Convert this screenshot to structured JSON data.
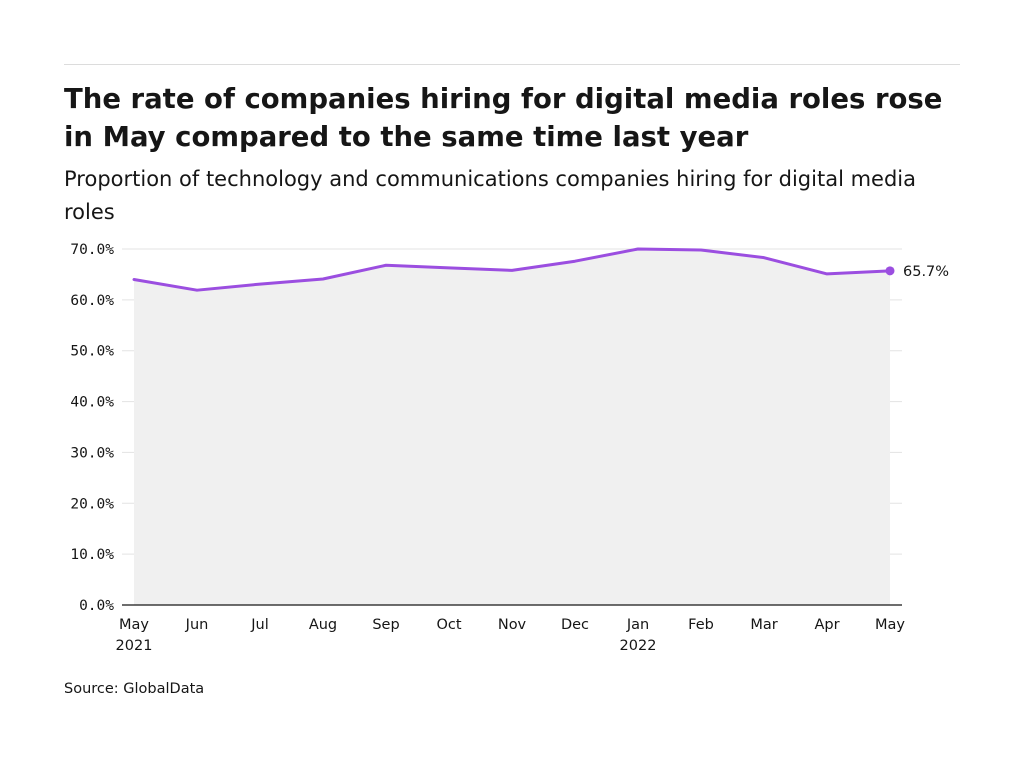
{
  "title": "The rate of companies hiring for digital media roles rose in May compared to the same time last year",
  "subtitle": "Proportion of technology and communications companies hiring for digital media roles",
  "source": "Source: GlobalData",
  "chart_data": {
    "type": "line",
    "title": "The rate of companies hiring for digital media roles rose in May compared to the same time last year",
    "subtitle": "Proportion of technology and communications companies hiring for digital media roles",
    "categories": [
      "May 2021",
      "Jun 2021",
      "Jul 2021",
      "Aug 2021",
      "Sep 2021",
      "Oct 2021",
      "Nov 2021",
      "Dec 2021",
      "Jan 2022",
      "Feb 2022",
      "Mar 2022",
      "Apr 2022",
      "May 2022"
    ],
    "x_tick_labels": [
      [
        "May",
        "2021"
      ],
      [
        "Jun",
        ""
      ],
      [
        "Jul",
        ""
      ],
      [
        "Aug",
        ""
      ],
      [
        "Sep",
        ""
      ],
      [
        "Oct",
        ""
      ],
      [
        "Nov",
        ""
      ],
      [
        "Dec",
        ""
      ],
      [
        "Jan",
        "2022"
      ],
      [
        "Feb",
        ""
      ],
      [
        "Mar",
        ""
      ],
      [
        "Apr",
        ""
      ],
      [
        "May",
        ""
      ]
    ],
    "series": [
      {
        "values": [
          64.0,
          61.9,
          63.1,
          64.1,
          66.8,
          66.3,
          65.8,
          67.6,
          70.0,
          69.8,
          68.3,
          65.1,
          65.7
        ]
      }
    ],
    "end_label": "65.7%",
    "ylim": [
      0,
      70
    ],
    "y_ticks": [
      0,
      10,
      20,
      30,
      40,
      50,
      60,
      70
    ],
    "y_tick_labels": [
      "0.0%",
      "10.0%",
      "20.0%",
      "30.0%",
      "40.0%",
      "50.0%",
      "60.0%",
      "70.0%"
    ],
    "xlabel": "",
    "ylabel": "",
    "grid": true,
    "area_fill": true,
    "colors": {
      "line": "#9b4ee0",
      "area": "#f0f0f0",
      "grid": "#e3e3e3",
      "axis": "#161616"
    }
  }
}
